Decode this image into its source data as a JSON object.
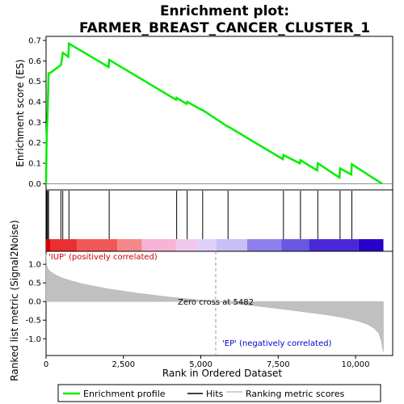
{
  "chart_data": {
    "type": "line",
    "title_lines": [
      "Enrichment plot:",
      "FARMER_BREAST_CANCER_CLUSTER_1"
    ],
    "top_panel": {
      "ylabel": "Enrichment score (ES)",
      "ylim": [
        -0.03,
        0.72
      ],
      "yticks": [
        0.0,
        0.1,
        0.2,
        0.3,
        0.4,
        0.5,
        0.6,
        0.7
      ],
      "ytick_labels": [
        "0.0",
        "0.1",
        "0.2",
        "0.3",
        "0.4",
        "0.5",
        "0.6",
        "0.7"
      ],
      "series": [
        {
          "name": "Enrichment profile",
          "color": "#00ee00",
          "x": [
            0,
            20,
            20,
            50,
            50,
            80,
            80,
            120,
            480,
            480,
            540,
            540,
            720,
            740,
            2020,
            2040,
            4200,
            4220,
            4540,
            4560,
            5040,
            5060,
            5860,
            5880,
            7650,
            7670,
            8200,
            8220,
            8760,
            8780,
            9480,
            9500,
            9860,
            9880,
            10860
          ],
          "y": [
            0.0,
            0.24,
            0.24,
            0.34,
            0.34,
            0.54,
            0.54,
            0.54,
            0.58,
            0.58,
            0.64,
            0.64,
            0.62,
            0.685,
            0.57,
            0.605,
            0.41,
            0.42,
            0.39,
            0.4,
            0.36,
            0.36,
            0.28,
            0.28,
            0.12,
            0.14,
            0.1,
            0.115,
            0.065,
            0.1,
            0.03,
            0.075,
            0.045,
            0.095,
            0.0
          ]
        }
      ]
    },
    "hits": [
      20,
      50,
      80,
      480,
      540,
      740,
      2040,
      4220,
      4560,
      5060,
      5880,
      7670,
      8220,
      8780,
      9500,
      9880
    ],
    "hits_color": "#000000",
    "color_bar": {
      "colors": [
        "#d90000",
        "#e83030",
        "#f05858",
        "#f48888",
        "#f6b4d6",
        "#f0c8ee",
        "#e0d0f8",
        "#c8c0f4",
        "#8e80ec",
        "#6a58e0",
        "#4a28d8",
        "#2a00cc"
      ],
      "breaks": [
        0,
        130,
        1000,
        2300,
        3100,
        4200,
        4900,
        5500,
        6500,
        7600,
        8500,
        10100,
        10900
      ]
    },
    "bottom_panel": {
      "ylabel": "Ranked list metric (Signal2Noise)",
      "ylim": [
        -1.45,
        1.35
      ],
      "yticks": [
        -1.0,
        -0.5,
        0.0,
        0.5,
        1.0
      ],
      "ytick_labels": [
        "-1.0",
        "-0.5",
        "0.0",
        "0.5",
        "1.0"
      ],
      "metric_x": [
        0,
        20,
        60,
        150,
        300,
        500,
        800,
        1200,
        2000,
        3000,
        4000,
        5000,
        5482,
        6000,
        7000,
        8000,
        9000,
        9600,
        10100,
        10400,
        10600,
        10750,
        10830,
        10870,
        10900
      ],
      "metric_y": [
        1.28,
        0.98,
        0.88,
        0.8,
        0.72,
        0.64,
        0.56,
        0.47,
        0.34,
        0.22,
        0.12,
        0.04,
        0.0,
        -0.05,
        -0.14,
        -0.24,
        -0.35,
        -0.43,
        -0.53,
        -0.62,
        -0.72,
        -0.85,
        -1.05,
        -1.25,
        -1.35
      ],
      "fill_color": "#c0c0c0",
      "zero_cross_x": 5482,
      "zero_cross_label": "Zero cross at 5482",
      "pos_label": "'IUP' (positively correlated)",
      "pos_color": "#cc0000",
      "neg_label": "'EP' (negatively correlated)",
      "neg_color": "#0000cc"
    },
    "xlabel": "Rank in Ordered Dataset",
    "xlim": [
      0,
      11200
    ],
    "xticks": [
      0,
      2500,
      5000,
      7500,
      10000
    ],
    "xtick_labels": [
      "0",
      "2,500",
      "5,000",
      "7,500",
      "10,000"
    ],
    "legend": {
      "placement": "bottom",
      "entries": [
        {
          "label": "Enrichment profile",
          "color": "#00ee00"
        },
        {
          "label": "Hits",
          "color": "#000000"
        },
        {
          "label": "Ranking metric scores",
          "color": "#c0c0c0"
        }
      ]
    }
  }
}
